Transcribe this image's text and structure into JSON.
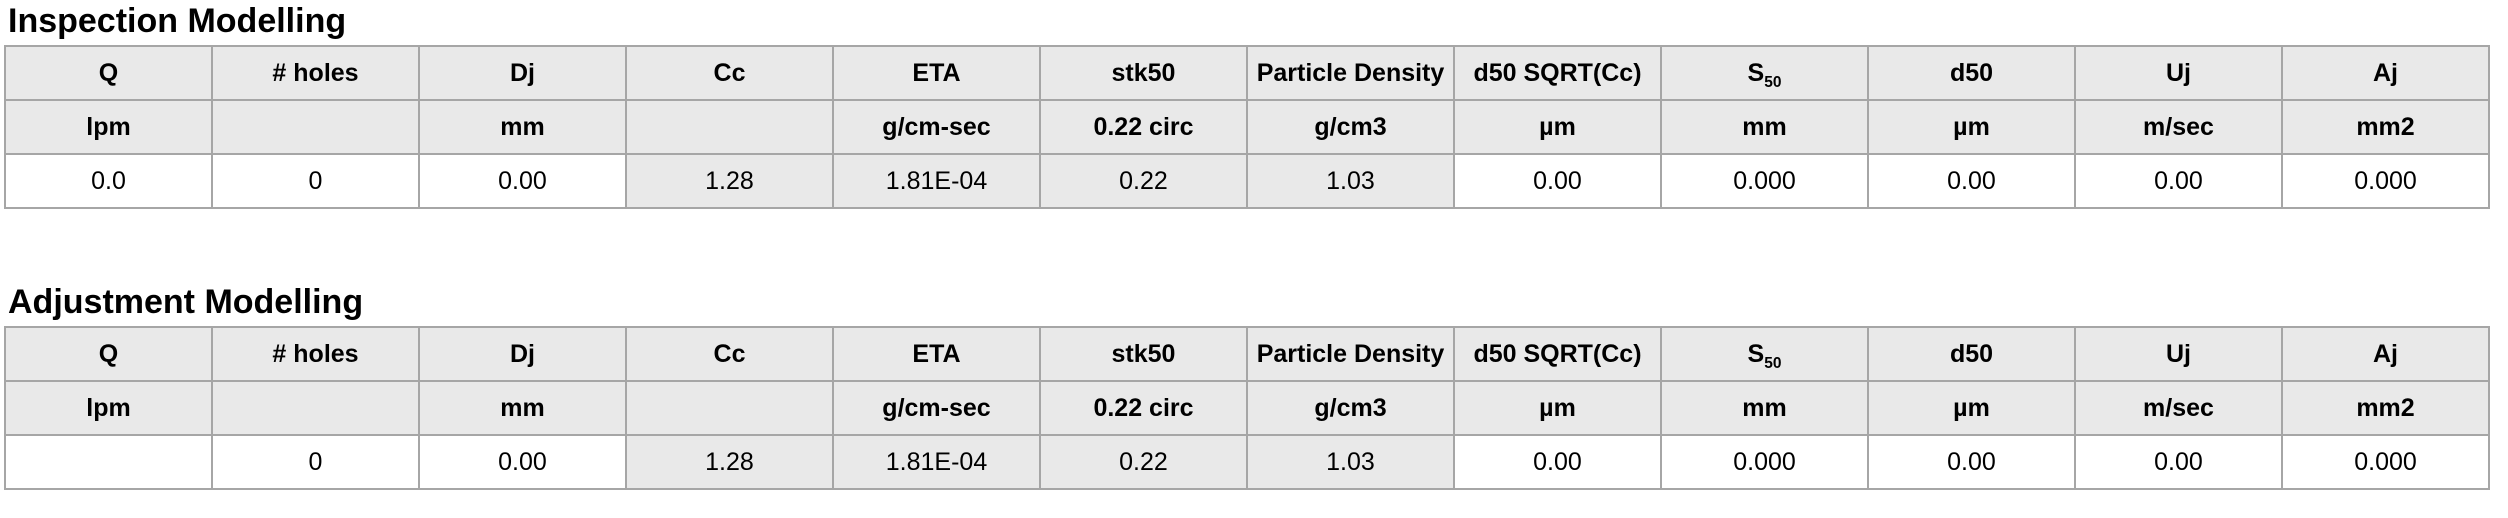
{
  "tables": [
    {
      "title": "Inspection Modelling",
      "columns": [
        {
          "key": "q",
          "header": "Q",
          "unit": "lpm",
          "value": "0.0",
          "computed": false
        },
        {
          "key": "holes",
          "header": "# holes",
          "unit": "",
          "value": "0",
          "computed": false
        },
        {
          "key": "dj",
          "header": "Dj",
          "unit": "mm",
          "value": "0.00",
          "computed": false
        },
        {
          "key": "cc",
          "header": "Cc",
          "unit": "",
          "value": "1.28",
          "computed": true
        },
        {
          "key": "eta",
          "header": "ETA",
          "unit": "g/cm-sec",
          "value": "1.81E-04",
          "computed": true
        },
        {
          "key": "stk50",
          "header": "stk50",
          "unit": "0.22 circ",
          "value": "0.22",
          "computed": true
        },
        {
          "key": "particle-density",
          "header": "Particle Density",
          "unit": "g/cm3",
          "value": "1.03",
          "computed": true
        },
        {
          "key": "d50-sqrt-cc",
          "header": "d50 SQRT(Cc)",
          "unit": "µm",
          "value": "0.00",
          "computed": false
        },
        {
          "key": "s50",
          "header": {
            "text": "S",
            "sub": "50"
          },
          "unit": "mm",
          "value": "0.000",
          "computed": false
        },
        {
          "key": "d50",
          "header": "d50",
          "unit": "µm",
          "value": "0.00",
          "computed": false
        },
        {
          "key": "uj",
          "header": "Uj",
          "unit": "m/sec",
          "value": "0.00",
          "computed": false
        },
        {
          "key": "aj",
          "header": "Aj",
          "unit": "mm2",
          "value": "0.000",
          "computed": false
        }
      ]
    },
    {
      "title": "Adjustment Modelling",
      "columns": [
        {
          "key": "q",
          "header": "Q",
          "unit": "lpm",
          "value": "",
          "computed": false
        },
        {
          "key": "holes",
          "header": "# holes",
          "unit": "",
          "value": "0",
          "computed": false
        },
        {
          "key": "dj",
          "header": "Dj",
          "unit": "mm",
          "value": "0.00",
          "computed": false
        },
        {
          "key": "cc",
          "header": "Cc",
          "unit": "",
          "value": "1.28",
          "computed": true
        },
        {
          "key": "eta",
          "header": "ETA",
          "unit": "g/cm-sec",
          "value": "1.81E-04",
          "computed": true
        },
        {
          "key": "stk50",
          "header": "stk50",
          "unit": "0.22 circ",
          "value": "0.22",
          "computed": true
        },
        {
          "key": "particle-density",
          "header": "Particle Density",
          "unit": "g/cm3",
          "value": "1.03",
          "computed": true
        },
        {
          "key": "d50-sqrt-cc",
          "header": "d50 SQRT(Cc)",
          "unit": "µm",
          "value": "0.00",
          "computed": false
        },
        {
          "key": "s50",
          "header": {
            "text": "S",
            "sub": "50"
          },
          "unit": "mm",
          "value": "0.000",
          "computed": false
        },
        {
          "key": "d50",
          "header": "d50",
          "unit": "µm",
          "value": "0.00",
          "computed": false
        },
        {
          "key": "uj",
          "header": "Uj",
          "unit": "m/sec",
          "value": "0.00",
          "computed": false
        },
        {
          "key": "aj",
          "header": "Aj",
          "unit": "mm2",
          "value": "0.000",
          "computed": false
        }
      ]
    }
  ],
  "colors": {
    "shaded_cell_fill": "#e9e9e9",
    "cell_border": "#a6a6a6",
    "background": "#ffffff",
    "text": "#000000"
  }
}
